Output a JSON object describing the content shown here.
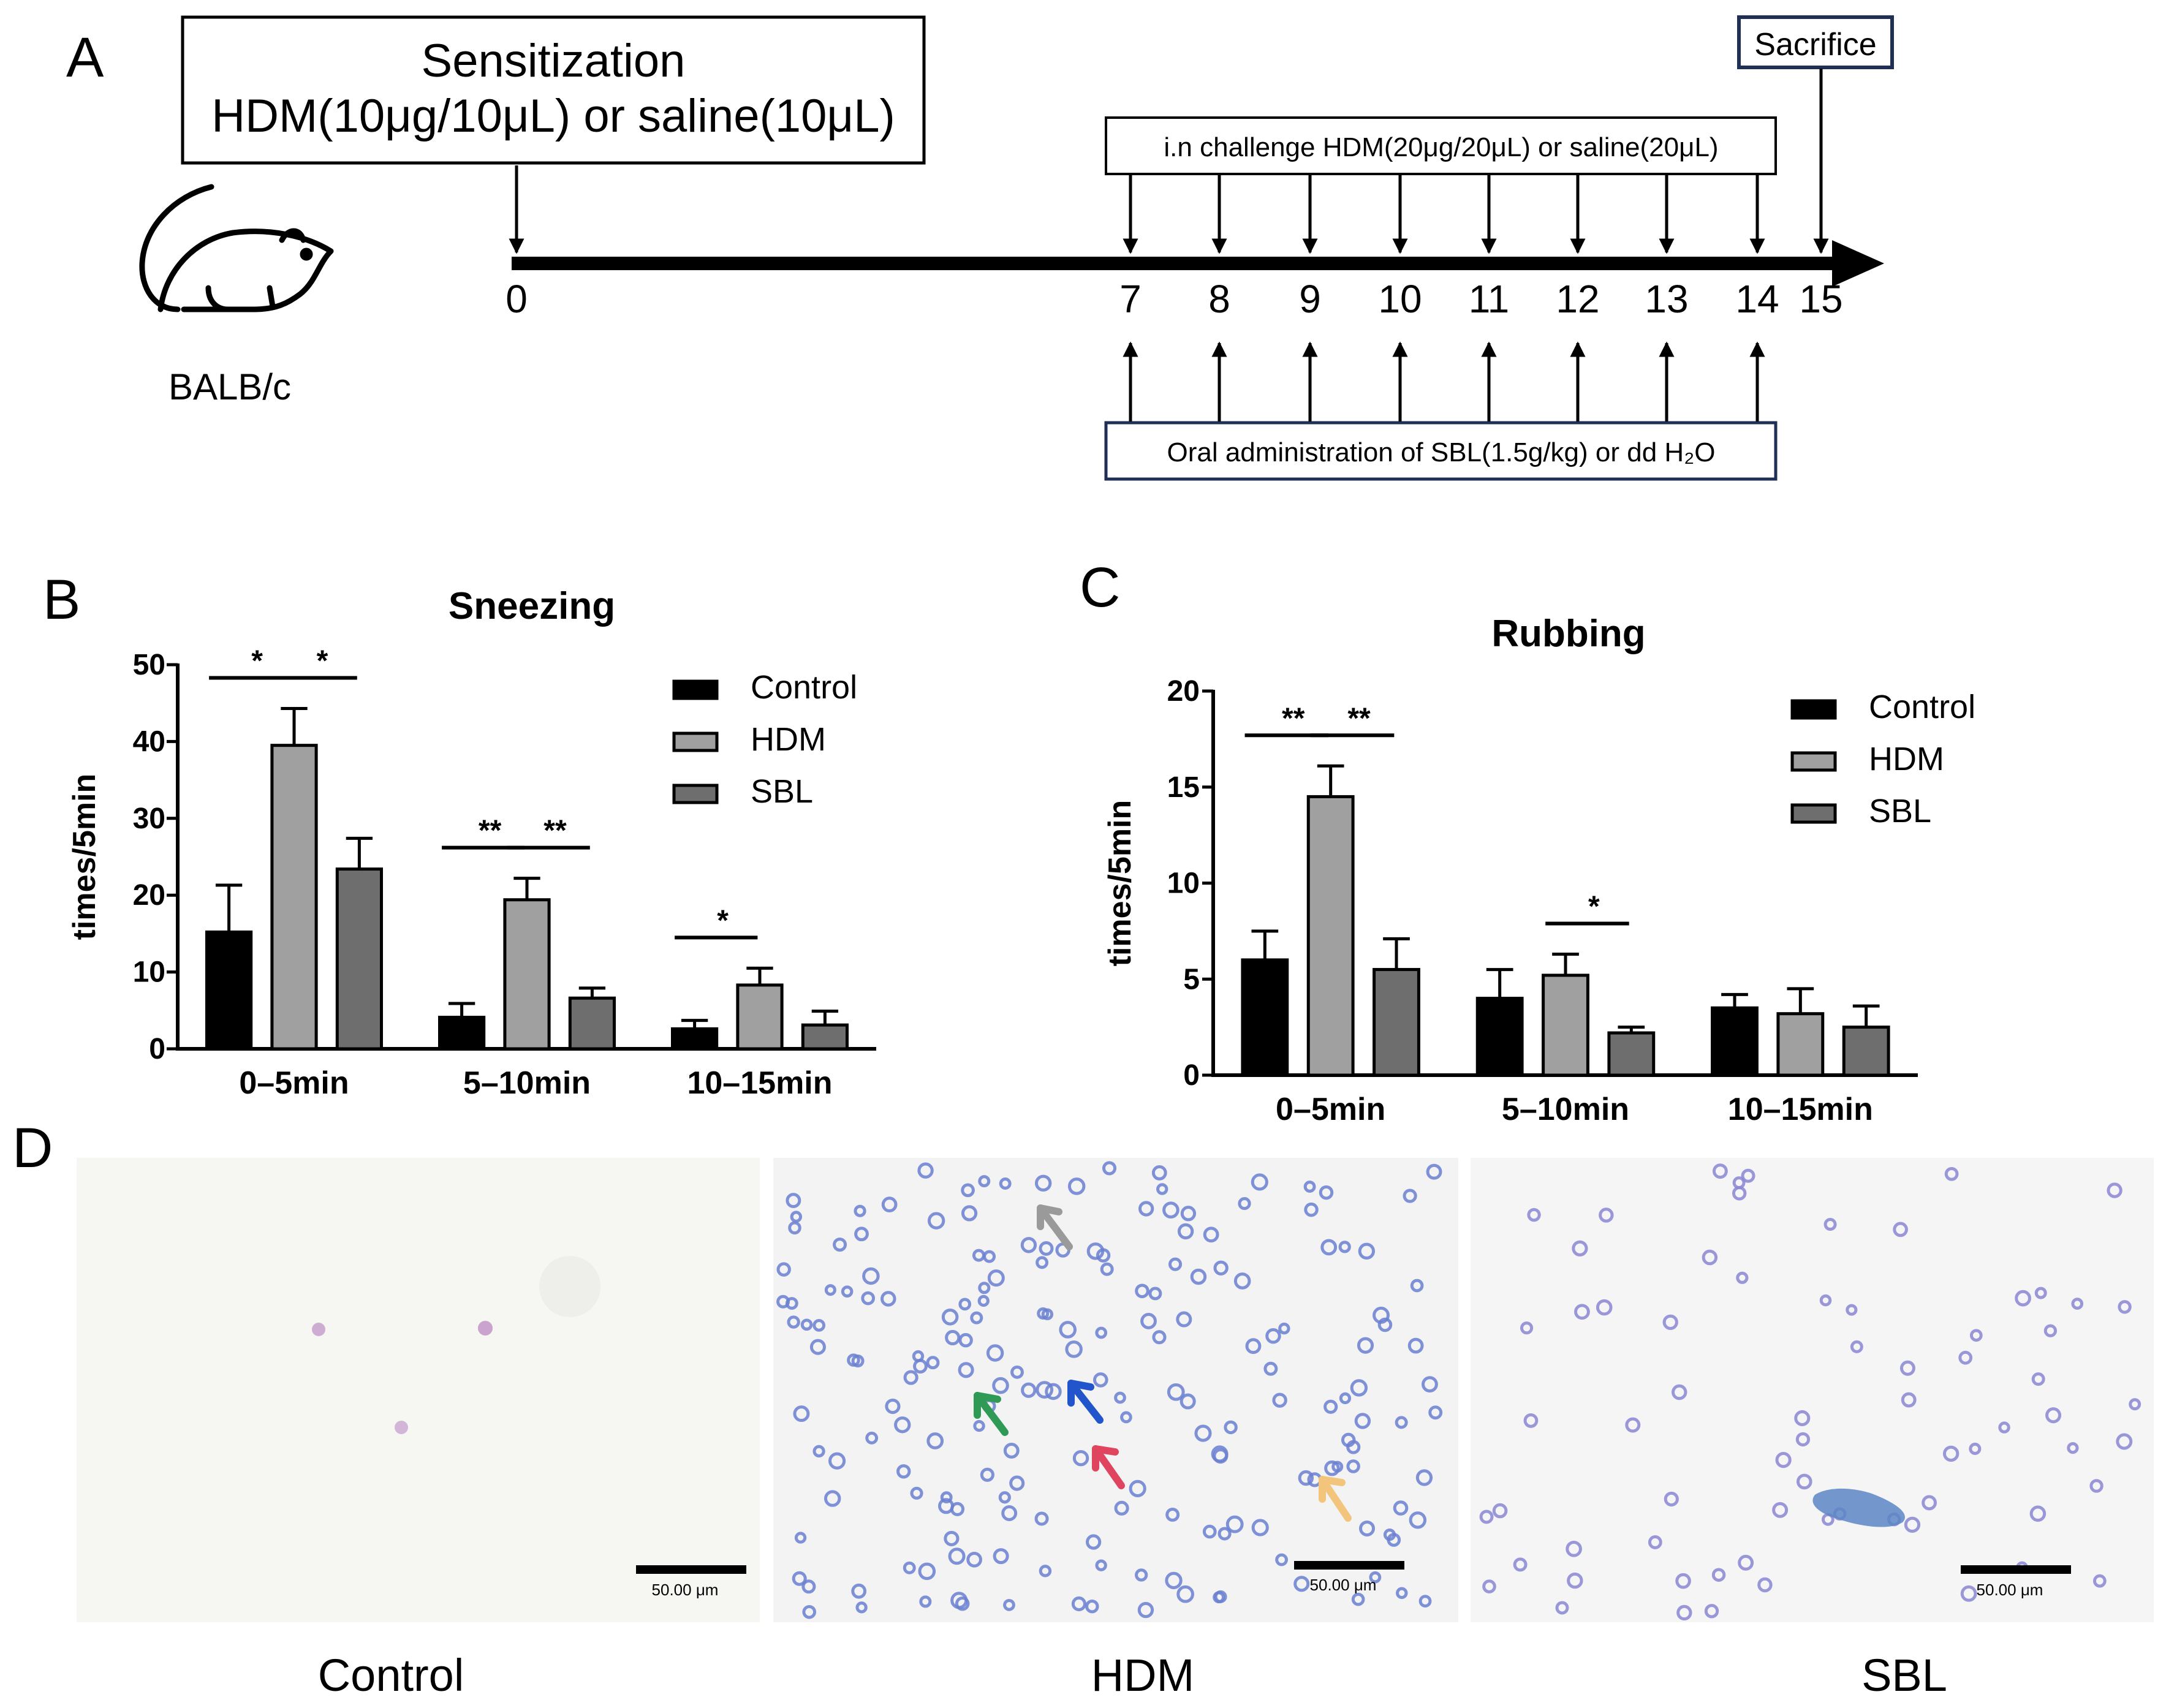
{
  "panels": {
    "A": "A",
    "B": "B",
    "C": "C",
    "D": "D"
  },
  "timeline": {
    "sensitization_line1": "Sensitization",
    "sensitization_line2": "HDM(10μg/10μL) or saline(10μL)",
    "challenge": "i.n challenge HDM(20μg/20μL) or saline(20μL)",
    "oral": "Oral administration of SBL(1.5g/kg) or dd H₂O",
    "sacrifice": "Sacrifice",
    "mouse_label": "BALB/c",
    "days": [
      "0",
      "7",
      "8",
      "9",
      "10",
      "11",
      "12",
      "13",
      "14",
      "15"
    ]
  },
  "colors": {
    "Control": "#000000",
    "HDM": "#a0a0a0",
    "SBL": "#6e6e6e",
    "arrow_gray": "#9a9a9a",
    "arrow_blue": "#2255cc",
    "arrow_green": "#2e9a55",
    "arrow_red": "#e0455f",
    "arrow_yellow": "#f3c57c"
  },
  "chart_data": [
    {
      "type": "bar",
      "title": "Sneezing",
      "ylabel": "times/5min",
      "xlabel": "",
      "ylim": [
        0,
        50
      ],
      "yticks": [
        "0",
        "10",
        "20",
        "30",
        "40",
        "50"
      ],
      "categories": [
        "0–5min",
        "5–10min",
        "10–15min"
      ],
      "series": [
        {
          "name": "Control",
          "values": [
            15.2,
            4.1,
            2.6
          ],
          "errors": [
            6.1,
            1.8,
            1.1
          ]
        },
        {
          "name": "HDM",
          "values": [
            39.5,
            19.4,
            8.3
          ],
          "errors": [
            4.8,
            2.8,
            2.2
          ]
        },
        {
          "name": "SBL",
          "values": [
            23.4,
            6.6,
            3.1
          ],
          "errors": [
            4.0,
            1.3,
            1.8
          ]
        }
      ],
      "significance": [
        {
          "category": "0–5min",
          "pair": [
            "Control",
            "HDM"
          ],
          "label": "*"
        },
        {
          "category": "0–5min",
          "pair": [
            "HDM",
            "SBL"
          ],
          "label": "*"
        },
        {
          "category": "5–10min",
          "pair": [
            "Control",
            "HDM"
          ],
          "label": "**"
        },
        {
          "category": "5–10min",
          "pair": [
            "HDM",
            "SBL"
          ],
          "label": "**"
        },
        {
          "category": "10–15min",
          "pair": [
            "Control",
            "HDM"
          ],
          "label": "*"
        }
      ],
      "legend": "top-right"
    },
    {
      "type": "bar",
      "title": "Rubbing",
      "ylabel": "times/5min",
      "xlabel": "",
      "ylim": [
        0,
        20
      ],
      "yticks": [
        "0",
        "5",
        "10",
        "15",
        "20"
      ],
      "categories": [
        "0–5min",
        "5–10min",
        "10–15min"
      ],
      "series": [
        {
          "name": "Control",
          "values": [
            6.0,
            4.0,
            3.5
          ],
          "errors": [
            1.5,
            1.5,
            0.7
          ]
        },
        {
          "name": "HDM",
          "values": [
            14.5,
            5.2,
            3.2
          ],
          "errors": [
            1.6,
            1.1,
            1.3
          ]
        },
        {
          "name": "SBL",
          "values": [
            5.5,
            2.2,
            2.5
          ],
          "errors": [
            1.6,
            0.3,
            1.1
          ]
        }
      ],
      "significance": [
        {
          "category": "0–5min",
          "pair": [
            "Control",
            "HDM"
          ],
          "label": "**"
        },
        {
          "category": "0–5min",
          "pair": [
            "HDM",
            "SBL"
          ],
          "label": "**"
        },
        {
          "category": "5–10min",
          "pair": [
            "HDM",
            "SBL"
          ],
          "label": "*"
        }
      ],
      "legend": "top-right"
    }
  ],
  "micrographs": {
    "labels": [
      "Control",
      "HDM",
      "SBL"
    ],
    "scale_bar": "50.00 μm"
  }
}
